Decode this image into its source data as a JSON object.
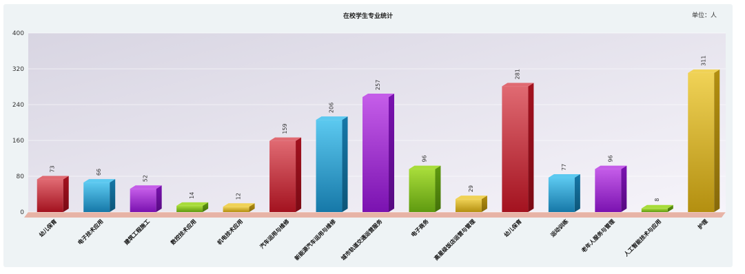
{
  "chart_data": {
    "type": "bar",
    "title": "在校学生专业统计",
    "unit_label": "单位：人",
    "categories": [
      "幼儿保育",
      "电子技术应用",
      "建筑工程施工",
      "数控技术应用",
      "机电技术应用",
      "汽车运用与维修",
      "新能源汽车运用与维修",
      "城市轨道交通运营服务",
      "电子商务",
      "高星级饭店运营与管理",
      "幼儿保育",
      "运动训练",
      "老年人服务与管理",
      "人工智能技术与应用",
      "护理"
    ],
    "values": [
      73,
      66,
      52,
      14,
      12,
      159,
      206,
      257,
      96,
      29,
      281,
      77,
      96,
      8,
      311
    ],
    "ylim": [
      0,
      400
    ],
    "yticks": [
      0,
      80,
      160,
      240,
      320,
      400
    ],
    "bar_colors": [
      {
        "light": "#e06a72",
        "dark": "#a3121f",
        "side": "#7a0a14"
      },
      {
        "light": "#5cc9f0",
        "dark": "#1678a8",
        "side": "#0d5578"
      },
      {
        "light": "#c45ce8",
        "dark": "#7a12b0",
        "side": "#560a80"
      },
      {
        "light": "#a8dc3a",
        "dark": "#5f9a10",
        "side": "#43700a"
      },
      {
        "light": "#f0d256",
        "dark": "#b38f10",
        "side": "#86690a"
      }
    ],
    "plot_background": [
      "#d8d5e2",
      "#f6f4fa"
    ],
    "floor_color": "#e7b3a6"
  }
}
